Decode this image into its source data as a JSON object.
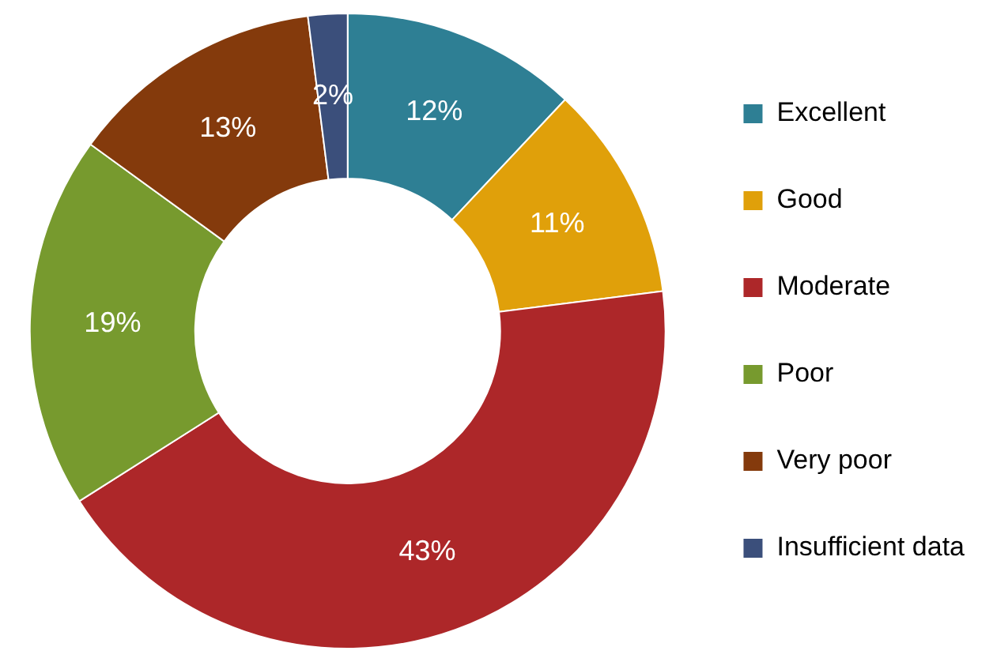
{
  "chart_data": {
    "type": "donut",
    "categories": [
      "Excellent",
      "Good",
      "Moderate",
      "Poor",
      "Very poor",
      "Insufficient data"
    ],
    "values": [
      12,
      11,
      43,
      19,
      13,
      2
    ],
    "value_labels": [
      "12%",
      "11%",
      "43%",
      "19%",
      "13%",
      "2%"
    ],
    "colors": [
      "#2e7f94",
      "#e0a00a",
      "#ad2729",
      "#779a2e",
      "#843a0c",
      "#3b4f7b"
    ],
    "legend": "right"
  }
}
